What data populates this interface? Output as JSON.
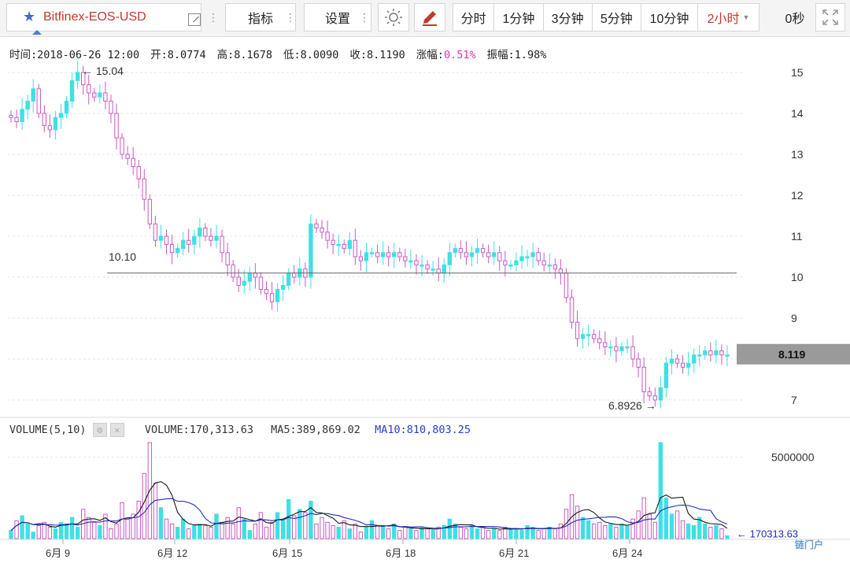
{
  "toolbar": {
    "symbol": "Bitfinex-EOS-USD",
    "indicators_label": "指标",
    "settings_label": "设置",
    "periods": [
      "分时",
      "1分钟",
      "3分钟",
      "5分钟",
      "10分钟"
    ],
    "active_period": "2小时",
    "countdown": "0秒"
  },
  "info": {
    "time": "时间:2018-06-26 12:00",
    "open": "开:8.0774",
    "high": "高:8.1678",
    "low": "低:8.0090",
    "close": "收:8.1190",
    "change_label": "涨幅:",
    "change_value": "0.51%",
    "amplitude": "振幅:1.98%"
  },
  "volume": {
    "title": "VOLUME(5,10)",
    "volume": "VOLUME:170,313.63",
    "ma5": "MA5:389,869.02",
    "ma10": "MA10:810,803.25"
  },
  "watermark": "链门户",
  "colors": {
    "up": "#3fe0e4",
    "down": "#c85ac2",
    "ma5": "#1a1a1a",
    "ma10": "#1f2fb5",
    "price_tag": "#9a9a9a"
  },
  "chart_data": [
    {
      "type": "candlestick",
      "interval": "2小时",
      "y_axis": {
        "ticks": [
          7,
          8,
          9,
          10,
          11,
          12,
          13,
          14,
          15
        ],
        "range": [
          6.75,
          15.25
        ]
      },
      "x_axis": {
        "ticks": [
          "6月 9",
          "6月 12",
          "6月 15",
          "6月 18",
          "6月 21",
          "6月 24"
        ]
      },
      "close_series": [
        13.9,
        13.8,
        14.1,
        14.3,
        14.6,
        14.0,
        13.7,
        13.6,
        13.9,
        14.0,
        14.3,
        14.8,
        15.0,
        14.7,
        14.5,
        14.4,
        14.5,
        14.3,
        14.0,
        13.4,
        13.0,
        12.9,
        12.7,
        12.4,
        11.9,
        11.3,
        10.9,
        11.0,
        10.8,
        10.6,
        10.7,
        10.9,
        10.8,
        11.0,
        11.2,
        11.0,
        10.9,
        11.0,
        10.6,
        10.3,
        10.0,
        9.8,
        9.9,
        10.1,
        10.0,
        9.7,
        9.6,
        9.4,
        9.7,
        9.8,
        10.1,
        10.0,
        10.2,
        10.0,
        11.3,
        11.2,
        11.1,
        10.9,
        10.8,
        10.8,
        10.7,
        10.9,
        10.5,
        10.4,
        10.6,
        10.6,
        10.5,
        10.6,
        10.5,
        10.6,
        10.5,
        10.4,
        10.4,
        10.3,
        10.3,
        10.2,
        10.2,
        10.1,
        10.3,
        10.6,
        10.7,
        10.6,
        10.5,
        10.6,
        10.7,
        10.6,
        10.5,
        10.6,
        10.4,
        10.3,
        10.3,
        10.4,
        10.5,
        10.5,
        10.6,
        10.4,
        10.3,
        10.3,
        10.2,
        10.1,
        9.5,
        8.9,
        8.5,
        8.6,
        8.6,
        8.5,
        8.4,
        8.3,
        8.3,
        8.2,
        8.3,
        8.3,
        8.0,
        7.8,
        7.2,
        7.1,
        7.0,
        7.3,
        7.9,
        8.0,
        7.9,
        7.8,
        7.9,
        8.1,
        8.1,
        8.2,
        8.1,
        8.2,
        8.1,
        8.1
      ],
      "annotations": {
        "high_marker": "15.04",
        "low_marker": "6.8926",
        "support_line": "10.10",
        "support_value": 10.1,
        "last_price": "8.119",
        "last_price_value": 8.119
      }
    },
    {
      "type": "bar",
      "name": "VOLUME(5,10)",
      "y_axis": {
        "ticks": [
          "5000000"
        ],
        "range": [
          0,
          6000000
        ]
      },
      "last_value_label": "170313.63",
      "last_value": 170313.63,
      "values": [
        500000,
        1100000,
        1400000,
        900000,
        400000,
        800000,
        1000000,
        700000,
        600000,
        1000000,
        900000,
        1300000,
        700000,
        1800000,
        1300000,
        1000000,
        800000,
        1500000,
        600000,
        900000,
        2200000,
        1200000,
        1500000,
        2300000,
        4000000,
        5900000,
        3400000,
        1900000,
        1200000,
        900000,
        700000,
        1200000,
        600000,
        800000,
        900000,
        800000,
        700000,
        1500000,
        1000000,
        1300000,
        900000,
        1900000,
        1200000,
        500000,
        900000,
        1600000,
        700000,
        1000000,
        1600000,
        1100000,
        2400000,
        1400000,
        1800000,
        1600000,
        2300000,
        900000,
        1300000,
        1000000,
        800000,
        700000,
        1100000,
        600000,
        900000,
        400000,
        700000,
        1100000,
        800000,
        800000,
        600000,
        900000,
        500000,
        700000,
        600000,
        500000,
        700000,
        600000,
        500000,
        700000,
        800000,
        1200000,
        900000,
        700000,
        600000,
        800000,
        600000,
        700000,
        500000,
        600000,
        500000,
        700000,
        600000,
        600000,
        500000,
        800000,
        700000,
        500000,
        600000,
        700000,
        600000,
        900000,
        1800000,
        2700000,
        2000000,
        1300000,
        1100000,
        900000,
        1000000,
        800000,
        900000,
        700000,
        900000,
        800000,
        1200000,
        1700000,
        2500000,
        1500000,
        1000000,
        5900000,
        2500000,
        1500000,
        1700000,
        1100000,
        900000,
        800000,
        1300000,
        900000,
        700000,
        800000,
        600000,
        170313
      ]
    }
  ]
}
